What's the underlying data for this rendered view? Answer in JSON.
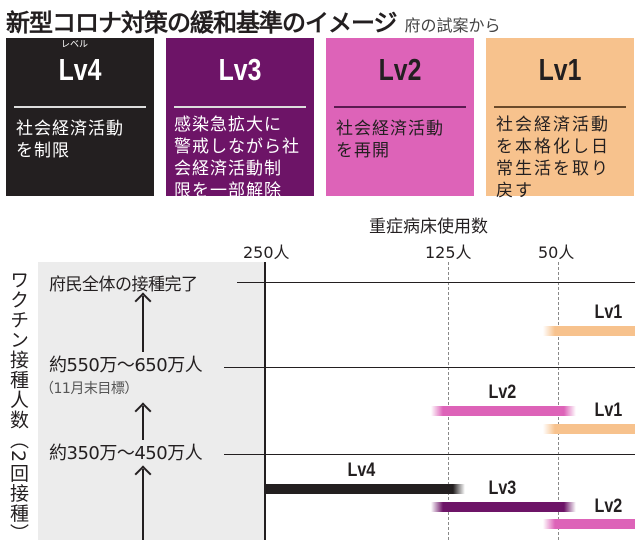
{
  "title": "新型コロナ対策の緩和基準のイメージ",
  "subtitle": "府の試案から",
  "levels": [
    {
      "ruby": "レベル",
      "label": "Lv4",
      "desc": [
        "社会経済活動",
        "を制限"
      ],
      "color": "#231f20"
    },
    {
      "label": "Lv3",
      "desc": [
        "感染急拡大に",
        "警戒しながら社",
        "会経済活動制",
        "限を一部解除"
      ],
      "color": "#6d1467"
    },
    {
      "label": "Lv2",
      "desc": [
        "社会経済活動",
        "を再開"
      ],
      "color": "#dd63b8"
    },
    {
      "label": "Lv1",
      "desc": [
        "社会経済活動",
        "を本格化し日",
        "常生活を取り",
        "戻す"
      ],
      "color": "#f7c28d"
    }
  ],
  "chart": {
    "x_title": "重症病床使用数",
    "x_ticks": [
      "250人",
      "125人",
      "50人"
    ],
    "y_title": "ワクチン接種人数（2回接種）",
    "rows": [
      {
        "label": "府民全体の接種完了"
      },
      {
        "label": "約550万～650万人",
        "note": "（11月末目標）"
      },
      {
        "label": "約350万～450万人"
      }
    ],
    "bars": [
      {
        "level": "Lv1",
        "band": "府民全体の接種完了",
        "from": "50人 付近",
        "to": "0"
      },
      {
        "level": "Lv2",
        "band": "約550万～650万人",
        "from": "125人",
        "to": "50人"
      },
      {
        "level": "Lv1",
        "band": "約550万～650万人",
        "from": "50人 付近",
        "to": "0"
      },
      {
        "level": "Lv4",
        "band": "約350万～450万人",
        "from": "250人",
        "to": "125人"
      },
      {
        "level": "Lv3",
        "band": "約350万～450万人",
        "from": "125人",
        "to": "50人"
      },
      {
        "level": "Lv2",
        "band": "約350万～450万人",
        "from": "50人 付近",
        "to": "0"
      }
    ]
  }
}
